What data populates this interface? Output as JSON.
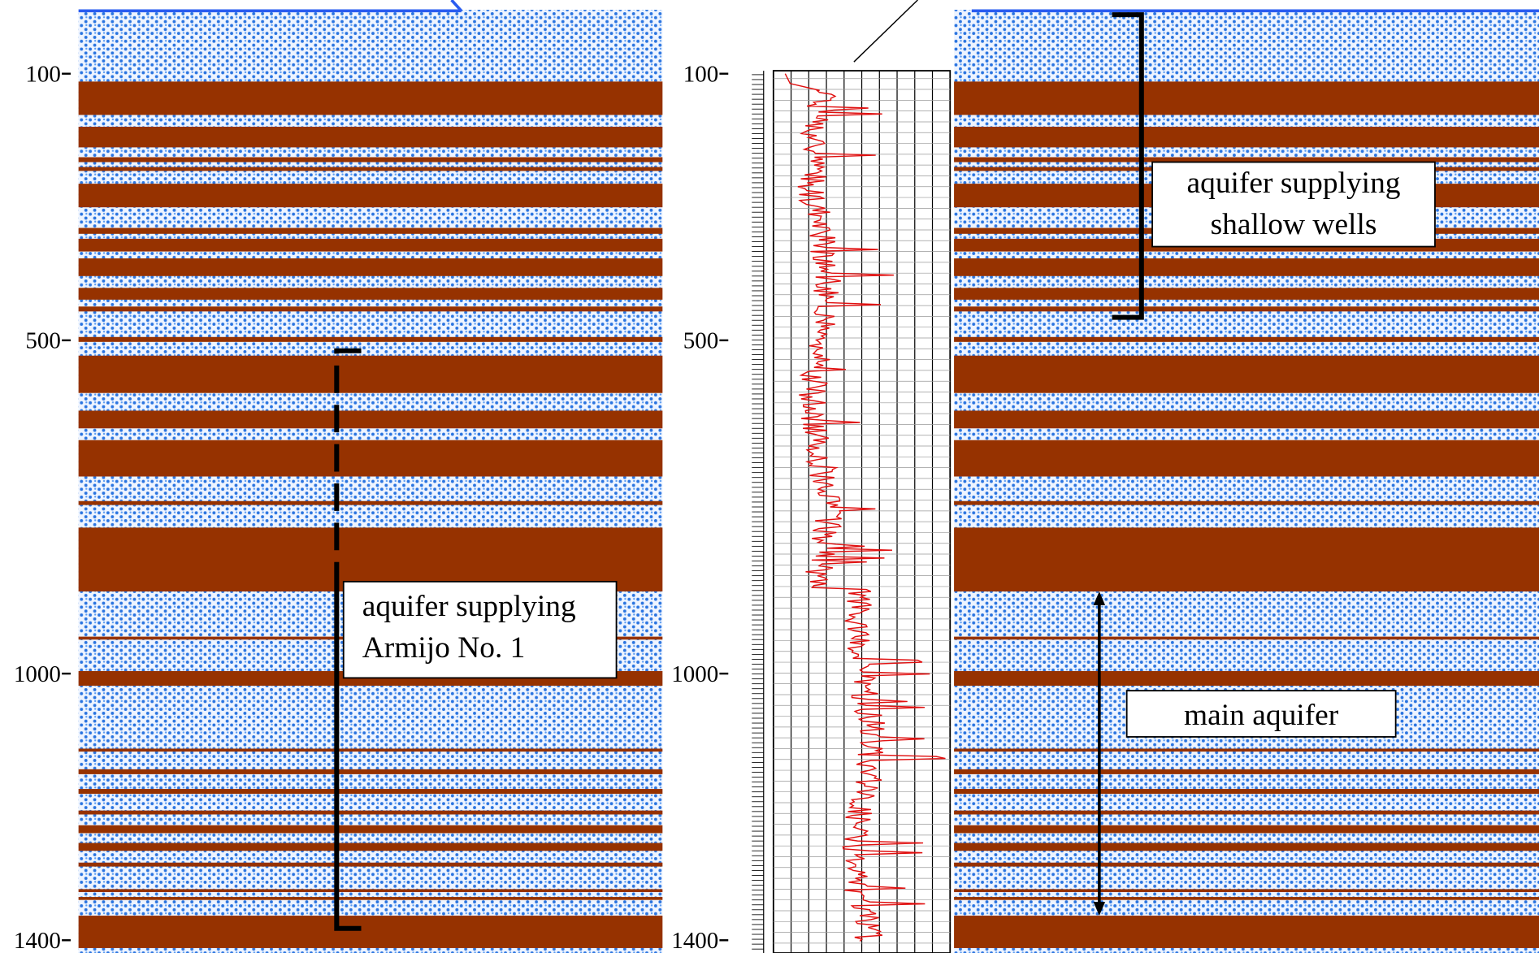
{
  "depth_ticks": [
    100,
    500,
    1000,
    1400
  ],
  "annotations": [
    {
      "lines": [
        "aquifer supplying",
        "Armijo No. 1"
      ]
    },
    {
      "lines": [
        "aquifer supplying",
        "shallow wells"
      ]
    },
    {
      "lines": [
        "main aquifer"
      ]
    }
  ]
}
